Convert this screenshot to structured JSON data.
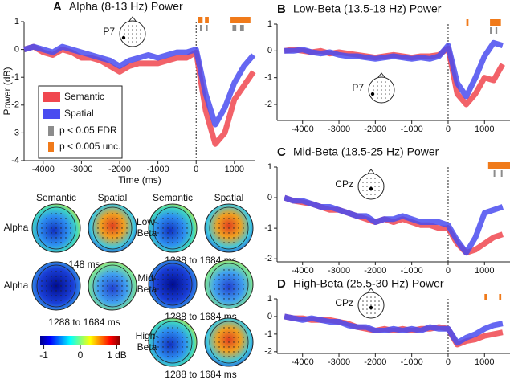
{
  "chart_data": [
    {
      "type": "line",
      "panel": "A",
      "title": "Alpha (8-13 Hz) Power",
      "xlabel": "Time (ms)",
      "ylabel": "Power (dB)",
      "annotation": "P7",
      "x": [
        -4500,
        -4250,
        -4000,
        -3750,
        -3500,
        -3250,
        -3000,
        -2750,
        -2500,
        -2250,
        -2000,
        -1750,
        -1500,
        -1250,
        -1000,
        -750,
        -500,
        -250,
        0,
        250,
        500,
        750,
        1000,
        1250,
        1500
      ],
      "series": [
        {
          "name": "Semantic",
          "color": "#f0474f",
          "values": [
            0,
            0.1,
            -0.1,
            -0.2,
            0,
            -0.1,
            -0.3,
            -0.3,
            -0.4,
            -0.6,
            -0.8,
            -0.6,
            -0.5,
            -0.5,
            -0.5,
            -0.4,
            -0.3,
            -0.3,
            -0.1,
            -2.2,
            -3.4,
            -3.0,
            -1.8,
            -1.3,
            -0.8
          ]
        },
        {
          "name": "Spatial",
          "color": "#4a4cf0",
          "values": [
            0,
            0.1,
            0,
            -0.1,
            0.1,
            0,
            -0.1,
            -0.2,
            -0.3,
            -0.4,
            -0.6,
            -0.4,
            -0.3,
            -0.2,
            -0.3,
            -0.2,
            -0.1,
            -0.1,
            0,
            -1.6,
            -2.7,
            -2.1,
            -1.2,
            -0.6,
            -0.2
          ]
        }
      ],
      "significance": [
        {
          "name": "p < 0.05 FDR",
          "color": "#8c8c8c",
          "intervals": [
            [
              100,
              160
            ],
            [
              260,
              300
            ],
            [
              950,
              1050
            ],
            [
              1150,
              1250
            ]
          ]
        },
        {
          "name": "p < 0.005 unc.",
          "color": "#f07a1a",
          "intervals": [
            [
              40,
              170
            ],
            [
              230,
              330
            ],
            [
              900,
              1420
            ]
          ]
        }
      ],
      "xlim": [
        -4500,
        1550
      ],
      "ylim": [
        -4,
        1
      ],
      "xticks": [
        -4000,
        -3000,
        -2000,
        -1000,
        0,
        1000
      ],
      "yticks": [
        -4,
        -3,
        -2,
        -1,
        0,
        1
      ]
    },
    {
      "type": "line",
      "panel": "B",
      "title": "Low-Beta (13.5-18 Hz) Power",
      "annotation": "P7",
      "x": [
        -4500,
        -4250,
        -4000,
        -3750,
        -3500,
        -3250,
        -3000,
        -2750,
        -2500,
        -2250,
        -2000,
        -1750,
        -1500,
        -1250,
        -1000,
        -750,
        -500,
        -250,
        0,
        250,
        500,
        750,
        1000,
        1250,
        1500
      ],
      "series": [
        {
          "color": "#f0474f",
          "values": [
            0,
            0.05,
            0,
            -0.05,
            0,
            -0.1,
            -0.05,
            -0.1,
            -0.15,
            -0.2,
            -0.25,
            -0.2,
            -0.15,
            -0.2,
            -0.25,
            -0.2,
            -0.2,
            -0.15,
            0.1,
            -1.6,
            -2.0,
            -1.6,
            -1.0,
            -1.1,
            -0.5
          ]
        },
        {
          "color": "#4a4cf0",
          "values": [
            0,
            0,
            0.05,
            -0.05,
            -0.1,
            -0.05,
            -0.15,
            -0.2,
            -0.2,
            -0.25,
            -0.3,
            -0.25,
            -0.2,
            -0.25,
            -0.3,
            -0.25,
            -0.3,
            -0.2,
            0.2,
            -1.2,
            -1.7,
            -1.0,
            -0.2,
            0.3,
            0.2
          ]
        }
      ],
      "significance": [
        {
          "color": "#8c8c8c",
          "intervals": [
            [
              1150,
              1200
            ],
            [
              1300,
              1350
            ]
          ]
        },
        {
          "color": "#f07a1a",
          "intervals": [
            [
              500,
              560
            ],
            [
              1150,
              1450
            ]
          ]
        }
      ],
      "xlim": [
        -4700,
        1700
      ],
      "ylim": [
        -2.6,
        1
      ],
      "xticks": [
        -4000,
        -3000,
        -2000,
        -1000,
        0,
        1000
      ],
      "yticks": [
        -2,
        -1,
        0,
        1
      ]
    },
    {
      "type": "line",
      "panel": "C",
      "title": "Mid-Beta (18.5-25 Hz) Power",
      "annotation": "CPz",
      "x": [
        -4500,
        -4250,
        -4000,
        -3750,
        -3500,
        -3250,
        -3000,
        -2750,
        -2500,
        -2250,
        -2000,
        -1750,
        -1500,
        -1250,
        -1000,
        -750,
        -500,
        -250,
        0,
        250,
        500,
        750,
        1000,
        1250,
        1500
      ],
      "series": [
        {
          "color": "#f0474f",
          "values": [
            0,
            -0.1,
            -0.15,
            -0.2,
            -0.3,
            -0.4,
            -0.4,
            -0.5,
            -0.6,
            -0.7,
            -0.8,
            -0.7,
            -0.8,
            -0.7,
            -0.8,
            -0.9,
            -0.9,
            -1.0,
            -1.0,
            -1.5,
            -1.8,
            -1.7,
            -1.5,
            -1.3,
            -1.2
          ]
        },
        {
          "color": "#4a4cf0",
          "values": [
            0,
            -0.1,
            -0.1,
            -0.2,
            -0.3,
            -0.3,
            -0.4,
            -0.5,
            -0.6,
            -0.6,
            -0.8,
            -0.7,
            -0.7,
            -0.6,
            -0.7,
            -0.8,
            -0.8,
            -0.8,
            -0.9,
            -1.4,
            -1.8,
            -1.3,
            -0.5,
            -0.4,
            -0.3
          ]
        }
      ],
      "significance": [
        {
          "color": "#8c8c8c",
          "intervals": [
            [
              1250,
              1290
            ],
            [
              1450,
              1490
            ]
          ]
        },
        {
          "color": "#f07a1a",
          "intervals": [
            [
              1100,
              1700
            ]
          ]
        }
      ],
      "xlim": [
        -4700,
        1700
      ],
      "ylim": [
        -2.1,
        1
      ],
      "xticks": [
        -4000,
        -3000,
        -2000,
        -1000,
        0,
        1000
      ],
      "yticks": [
        -2,
        -1,
        0,
        1
      ]
    },
    {
      "type": "line",
      "panel": "D",
      "title": "High-Beta (25.5-30 Hz) Power",
      "annotation": "CPz",
      "x": [
        -4500,
        -4250,
        -4000,
        -3750,
        -3500,
        -3250,
        -3000,
        -2750,
        -2500,
        -2250,
        -2000,
        -1750,
        -1500,
        -1250,
        -1000,
        -750,
        -500,
        -250,
        0,
        250,
        500,
        750,
        1000,
        1250,
        1500
      ],
      "series": [
        {
          "color": "#f0474f",
          "values": [
            0,
            -0.1,
            -0.1,
            -0.2,
            -0.2,
            -0.2,
            -0.3,
            -0.4,
            -0.6,
            -0.7,
            -0.8,
            -0.7,
            -0.8,
            -0.7,
            -0.8,
            -0.7,
            -0.7,
            -0.6,
            -0.7,
            -1.6,
            -1.4,
            -1.3,
            -1.1,
            -1.0,
            -0.9
          ]
        },
        {
          "color": "#4a4cf0",
          "values": [
            0,
            -0.1,
            -0.2,
            -0.1,
            -0.2,
            -0.3,
            -0.3,
            -0.5,
            -0.6,
            -0.6,
            -0.8,
            -0.8,
            -0.7,
            -0.8,
            -0.7,
            -0.8,
            -0.6,
            -0.7,
            -0.7,
            -1.5,
            -1.2,
            -1.0,
            -0.7,
            -0.5,
            -0.4
          ]
        }
      ],
      "significance": [
        {
          "color": "#f07a1a",
          "intervals": [
            [
              1000,
              1060
            ],
            [
              1400,
              1460
            ]
          ]
        }
      ],
      "xlim": [
        -4700,
        1700
      ],
      "ylim": [
        -2.1,
        1
      ],
      "xticks": [
        -4000,
        -3000,
        -2000,
        -1000,
        0,
        1000
      ],
      "yticks": [
        -2,
        -1,
        0,
        1
      ]
    }
  ],
  "topomaps": {
    "left": {
      "headers": [
        "Semantic",
        "Spatial"
      ],
      "rows": [
        {
          "label": "Alpha",
          "caption": "148 ms"
        },
        {
          "label": "Alpha",
          "caption": "1288 to 1684 ms"
        }
      ]
    },
    "right": {
      "headers": [
        "Semantic",
        "Spatial"
      ],
      "rows": [
        {
          "label": "Low-Beta",
          "caption": "1288 to 1684 ms"
        },
        {
          "label": "Mid-Beta",
          "caption": "1288 to 1684 ms"
        },
        {
          "label": "High-Beta",
          "caption": "1288 to 1684 ms"
        }
      ]
    }
  },
  "colorbar": {
    "lim": [
      -1.1,
      1.1
    ],
    "ticks": [
      -1,
      0,
      {
        "value": 1,
        "label": "1 dB"
      }
    ]
  }
}
